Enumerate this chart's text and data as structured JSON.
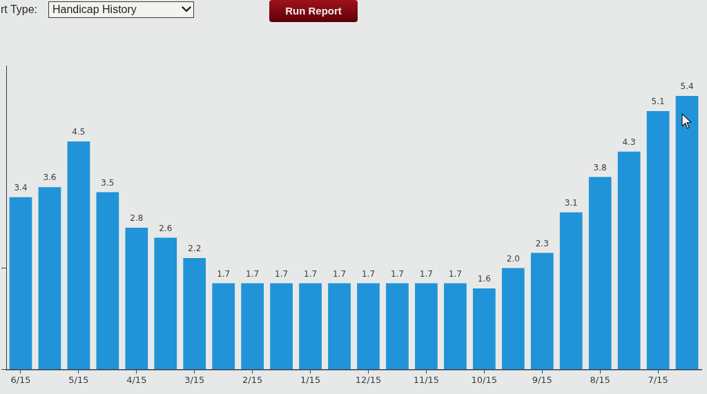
{
  "chart_data": {
    "type": "bar",
    "categories": [
      "6/15",
      null,
      "5/15",
      null,
      "4/15",
      null,
      "3/15",
      null,
      "2/15",
      null,
      "1/15",
      null,
      "12/15",
      null,
      "11/15",
      null,
      "10/15",
      null,
      "9/15",
      null,
      "8/15",
      null,
      "7/15",
      null
    ],
    "values": [
      3.4,
      3.6,
      4.5,
      3.5,
      2.8,
      2.6,
      2.2,
      1.7,
      1.7,
      1.7,
      1.7,
      1.7,
      1.7,
      1.7,
      1.7,
      1.7,
      1.6,
      2.0,
      2.3,
      3.1,
      3.8,
      4.3,
      5.1,
      5.4
    ],
    "value_labels": [
      "3.4",
      "3.6",
      "4.5",
      "3.5",
      "2.8",
      "2.6",
      "2.2",
      "1.7",
      "1.7",
      "1.7",
      "1.7",
      "1.7",
      "1.7",
      "1.7",
      "1.7",
      "1.7",
      "1.6",
      "2.0",
      "2.3",
      "3.1",
      "3.8",
      "4.3",
      "5.1",
      "5.4"
    ],
    "color": "#2193d8",
    "ylim": [
      0,
      6
    ],
    "yticks": [
      {
        "value": 0,
        "label": null
      },
      {
        "value": 2,
        "label": null
      }
    ],
    "tick_labels": "x",
    "grid": false,
    "legend": false,
    "annotations": [
      "rt Type:",
      "Handicap History",
      "Run Report"
    ]
  }
}
